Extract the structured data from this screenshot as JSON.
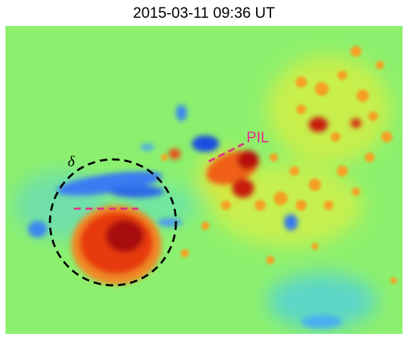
{
  "header": {
    "title": "2015-03-11 09:36 UT"
  },
  "annotations": {
    "delta": "δ",
    "pil": "PIL"
  }
}
